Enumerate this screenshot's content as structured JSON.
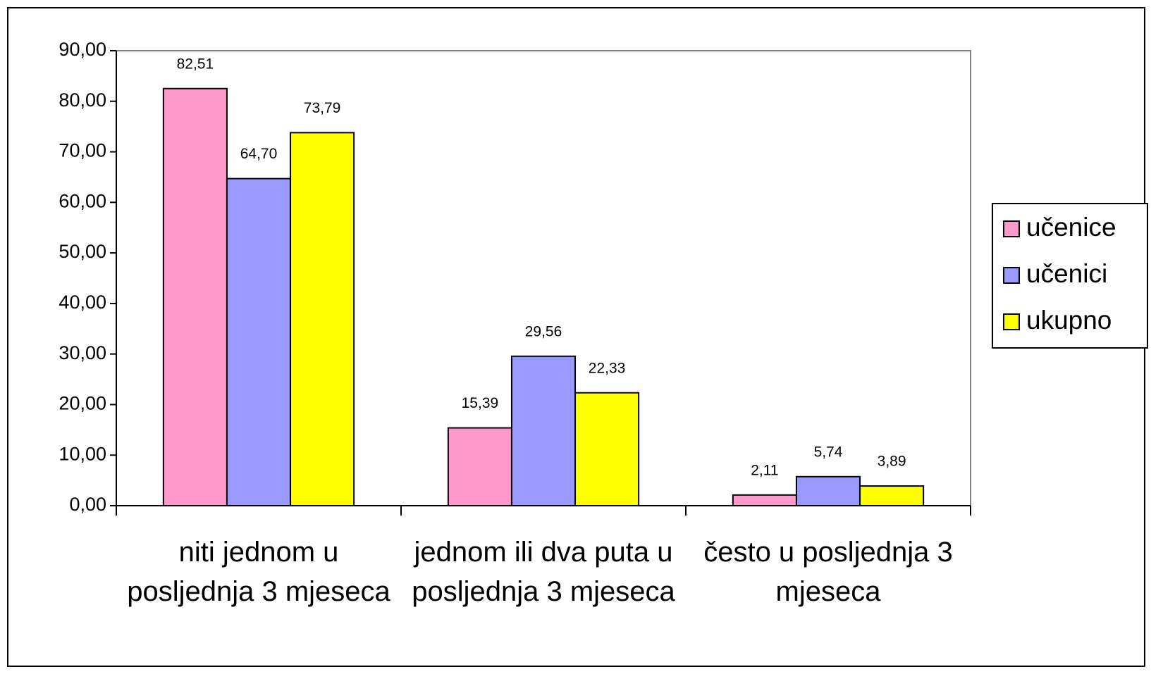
{
  "chart_data": {
    "type": "bar",
    "categories": [
      "niti jednom u posljednja 3 mjeseca",
      "jednom ili dva puta u posljednja 3 mjeseca",
      "često u posljednja 3 mjeseca"
    ],
    "series": [
      {
        "name": "učenice",
        "color": "#ff99cc",
        "values": [
          82.51,
          15.39,
          2.11
        ],
        "value_labels": [
          "82,51",
          "15,39",
          "2,11"
        ]
      },
      {
        "name": "učenici",
        "color": "#9999ff",
        "values": [
          64.7,
          29.56,
          5.74
        ],
        "value_labels": [
          "64,70",
          "29,56",
          "5,74"
        ]
      },
      {
        "name": "ukupno",
        "color": "#ffff00",
        "values": [
          73.79,
          22.33,
          3.89
        ],
        "value_labels": [
          "73,79",
          "22,33",
          "3,89"
        ]
      }
    ],
    "ylim": [
      0,
      90
    ],
    "yticks": [
      {
        "value": 0,
        "label": "0,00"
      },
      {
        "value": 10,
        "label": "10,00"
      },
      {
        "value": 20,
        "label": "20,00"
      },
      {
        "value": 30,
        "label": "30,00"
      },
      {
        "value": 40,
        "label": "40,00"
      },
      {
        "value": 50,
        "label": "50,00"
      },
      {
        "value": 60,
        "label": "60,00"
      },
      {
        "value": 70,
        "label": "70,00"
      },
      {
        "value": 80,
        "label": "80,00"
      },
      {
        "value": 90,
        "label": "90,00"
      }
    ],
    "legend": "right"
  }
}
